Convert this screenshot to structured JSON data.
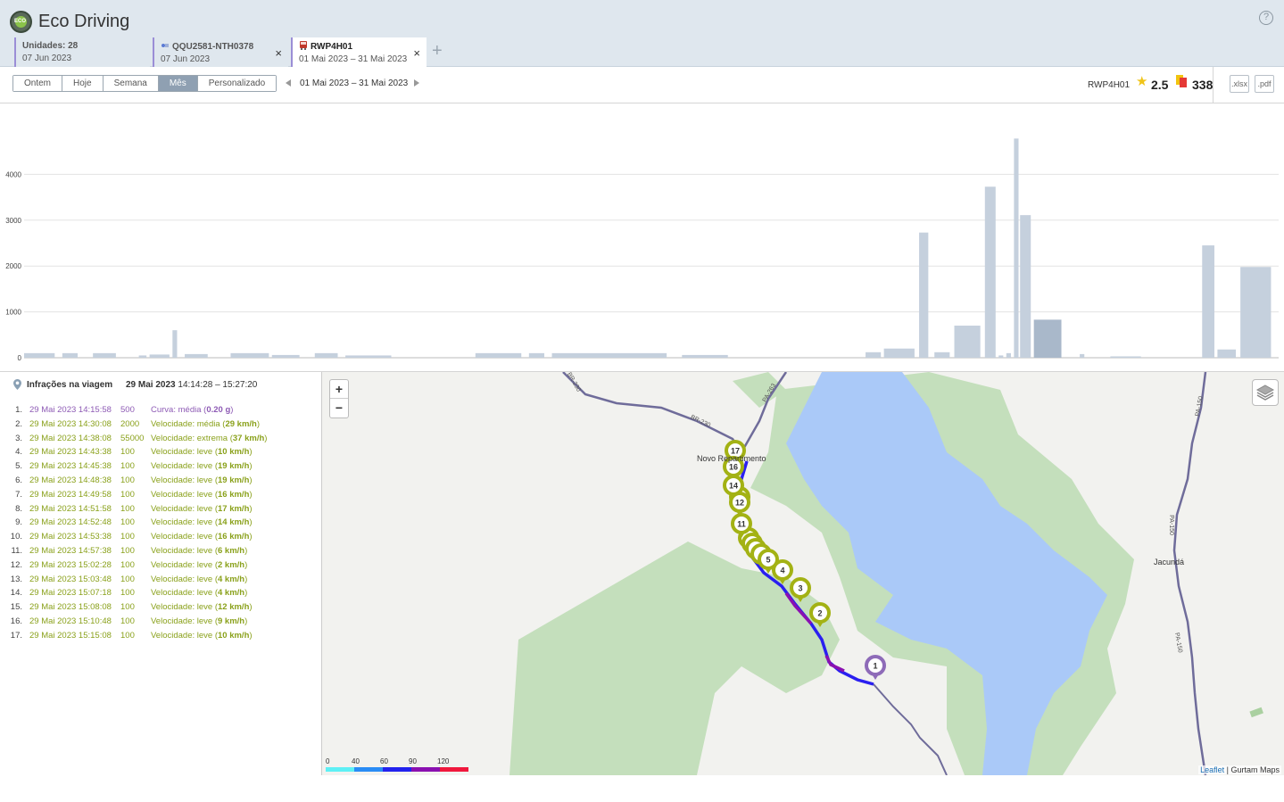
{
  "app": {
    "title": "Eco Driving",
    "help": "?"
  },
  "tabs": [
    {
      "line1": "Unidades: 28",
      "line2": "07 Jun 2023"
    },
    {
      "line1": "QQU2581-NTH0378",
      "line2": "07 Jun 2023",
      "close": "×"
    },
    {
      "line1": "RWP4H01",
      "line2": "01 Mai 2023  –  31 Mai 2023",
      "close": "×"
    }
  ],
  "add_tab": "+",
  "toolbar": {
    "periods": [
      "Ontem",
      "Hoje",
      "Semana",
      "Mês",
      "Personalizado"
    ],
    "active_period": "Mês",
    "date_range": "01 Mai 2023  –  31 Mai 2023",
    "unit": "RWP4H01",
    "rating": "2.5",
    "penalty": "338",
    "export_xlsx": ".xlsx",
    "export_pdf": ".pdf"
  },
  "chart_data": {
    "type": "bar",
    "yticks": [
      0,
      1000,
      2000,
      3000,
      4000
    ],
    "ylim": [
      0,
      5000
    ],
    "grid": true,
    "colors": {
      "bar": "#c5d0dd",
      "highlight": "#a9b8ca"
    },
    "bars": [
      {
        "x0": 0.0,
        "x1": 0.2,
        "v": 100
      },
      {
        "x0": 0.25,
        "x1": 0.35,
        "v": 100
      },
      {
        "x0": 0.45,
        "x1": 0.6,
        "v": 100
      },
      {
        "x0": 0.75,
        "x1": 0.8,
        "v": 50
      },
      {
        "x0": 0.82,
        "x1": 0.95,
        "v": 70
      },
      {
        "x0": 0.97,
        "x1": 1.0,
        "v": 600
      },
      {
        "x0": 1.05,
        "x1": 1.2,
        "v": 80
      },
      {
        "x0": 1.35,
        "x1": 1.6,
        "v": 100
      },
      {
        "x0": 1.62,
        "x1": 1.8,
        "v": 60
      },
      {
        "x0": 1.9,
        "x1": 2.05,
        "v": 100
      },
      {
        "x0": 2.1,
        "x1": 2.4,
        "v": 50
      },
      {
        "x0": 2.95,
        "x1": 3.25,
        "v": 100
      },
      {
        "x0": 3.3,
        "x1": 3.4,
        "v": 100
      },
      {
        "x0": 3.45,
        "x1": 4.2,
        "v": 100
      },
      {
        "x0": 4.3,
        "x1": 4.6,
        "v": 60
      },
      {
        "x0": 5.5,
        "x1": 5.6,
        "v": 120
      },
      {
        "x0": 5.62,
        "x1": 5.82,
        "v": 200
      },
      {
        "x0": 5.85,
        "x1": 5.91,
        "v": 2730
      },
      {
        "x0": 5.95,
        "x1": 6.05,
        "v": 120
      },
      {
        "x0": 6.08,
        "x1": 6.25,
        "v": 700
      },
      {
        "x0": 6.28,
        "x1": 6.35,
        "v": 3730
      },
      {
        "x0": 6.37,
        "x1": 6.4,
        "v": 50
      },
      {
        "x0": 6.42,
        "x1": 6.45,
        "v": 100
      },
      {
        "x0": 6.47,
        "x1": 6.5,
        "v": 4780
      },
      {
        "x0": 6.51,
        "x1": 6.58,
        "v": 3110
      },
      {
        "x0": 6.6,
        "x1": 6.78,
        "v": 830,
        "h": true
      },
      {
        "x0": 6.9,
        "x1": 6.93,
        "v": 80
      },
      {
        "x0": 7.1,
        "x1": 7.3,
        "v": 30
      },
      {
        "x0": 7.7,
        "x1": 7.78,
        "v": 2450
      },
      {
        "x0": 7.8,
        "x1": 7.92,
        "v": 180
      },
      {
        "x0": 7.95,
        "x1": 8.15,
        "v": 1980
      }
    ]
  },
  "panel": {
    "title": "Infrações na viagem",
    "trip_date": "29 Mai 2023",
    "trip_time": "14:14:28 – 15:27:20"
  },
  "infractions": [
    {
      "idx": "1.",
      "time": "29 Mai 2023 14:15:58",
      "pts": "500",
      "kind": "Curva: média (",
      "val": "0.20 g",
      "end": ")",
      "color": "purple"
    },
    {
      "idx": "2.",
      "time": "29 Mai 2023 14:30:08",
      "pts": "2000",
      "kind": "Velocidade: média (",
      "val": "29 km/h",
      "end": ")",
      "color": "green"
    },
    {
      "idx": "3.",
      "time": "29 Mai 2023 14:38:08",
      "pts": "55000",
      "kind": "Velocidade: extrema (",
      "val": "37 km/h",
      "end": ")",
      "color": "green"
    },
    {
      "idx": "4.",
      "time": "29 Mai 2023 14:43:38",
      "pts": "100",
      "kind": "Velocidade: leve (",
      "val": "10 km/h",
      "end": ")",
      "color": "green"
    },
    {
      "idx": "5.",
      "time": "29 Mai 2023 14:45:38",
      "pts": "100",
      "kind": "Velocidade: leve (",
      "val": "19 km/h",
      "end": ")",
      "color": "green"
    },
    {
      "idx": "6.",
      "time": "29 Mai 2023 14:48:38",
      "pts": "100",
      "kind": "Velocidade: leve (",
      "val": "19 km/h",
      "end": ")",
      "color": "green"
    },
    {
      "idx": "7.",
      "time": "29 Mai 2023 14:49:58",
      "pts": "100",
      "kind": "Velocidade: leve (",
      "val": "16 km/h",
      "end": ")",
      "color": "green"
    },
    {
      "idx": "8.",
      "time": "29 Mai 2023 14:51:58",
      "pts": "100",
      "kind": "Velocidade: leve (",
      "val": "17 km/h",
      "end": ")",
      "color": "green"
    },
    {
      "idx": "9.",
      "time": "29 Mai 2023 14:52:48",
      "pts": "100",
      "kind": "Velocidade: leve (",
      "val": "14 km/h",
      "end": ")",
      "color": "green"
    },
    {
      "idx": "10.",
      "time": "29 Mai 2023 14:53:38",
      "pts": "100",
      "kind": "Velocidade: leve (",
      "val": "16 km/h",
      "end": ")",
      "color": "green"
    },
    {
      "idx": "11.",
      "time": "29 Mai 2023 14:57:38",
      "pts": "100",
      "kind": "Velocidade: leve (",
      "val": "6 km/h",
      "end": ")",
      "color": "green"
    },
    {
      "idx": "12.",
      "time": "29 Mai 2023 15:02:28",
      "pts": "100",
      "kind": "Velocidade: leve (",
      "val": "2 km/h",
      "end": ")",
      "color": "green"
    },
    {
      "idx": "13.",
      "time": "29 Mai 2023 15:03:48",
      "pts": "100",
      "kind": "Velocidade: leve (",
      "val": "4 km/h",
      "end": ")",
      "color": "green"
    },
    {
      "idx": "14.",
      "time": "29 Mai 2023 15:07:18",
      "pts": "100",
      "kind": "Velocidade: leve (",
      "val": "4 km/h",
      "end": ")",
      "color": "green"
    },
    {
      "idx": "15.",
      "time": "29 Mai 2023 15:08:08",
      "pts": "100",
      "kind": "Velocidade: leve (",
      "val": "12 km/h",
      "end": ")",
      "color": "green"
    },
    {
      "idx": "16.",
      "time": "29 Mai 2023 15:10:48",
      "pts": "100",
      "kind": "Velocidade: leve (",
      "val": "9 km/h",
      "end": ")",
      "color": "green"
    },
    {
      "idx": "17.",
      "time": "29 Mai 2023 15:15:08",
      "pts": "100",
      "kind": "Velocidade: leve (",
      "val": "10 km/h",
      "end": ")",
      "color": "green"
    }
  ],
  "map": {
    "zoom_in": "+",
    "zoom_out": "−",
    "places": [
      "Novo Repartimento",
      "Jacundá"
    ],
    "roads": [
      "BR-230",
      "BR-230",
      "PA-263",
      "PA-150",
      "PA-150",
      "PA-150"
    ],
    "attribution_link": "Leaflet",
    "attribution_rest": " | Gurtam Maps",
    "speed_legend": [
      "0",
      "40",
      "60",
      "90",
      "120"
    ],
    "speed_colors": [
      "#5ef0f5",
      "#2a8cf5",
      "#2222ee",
      "#8a10b0",
      "#f0183c"
    ],
    "markers": [
      "17",
      "16",
      "14",
      "12",
      "11",
      "5",
      "4",
      "3",
      "2",
      "1"
    ]
  }
}
